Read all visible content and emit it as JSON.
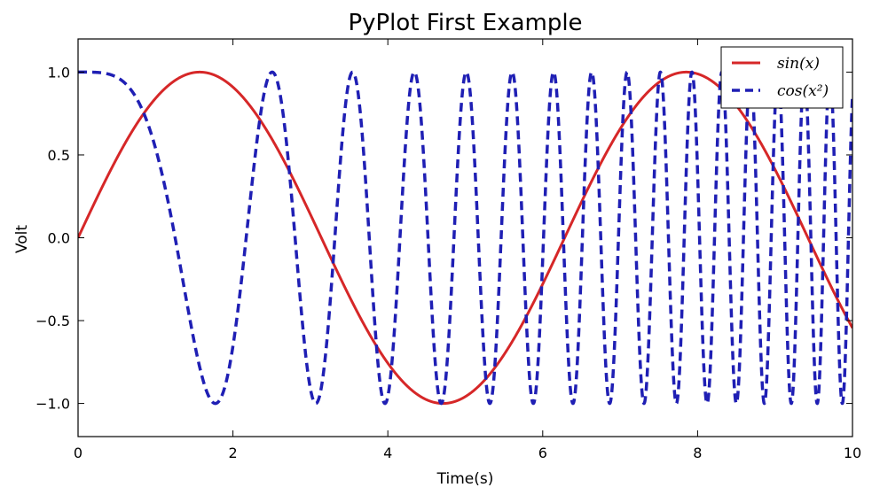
{
  "chart_data": {
    "type": "line",
    "title": "PyPlot First Example",
    "xlabel": "Time(s)",
    "ylabel": "Volt",
    "xlim": [
      0,
      10
    ],
    "ylim": [
      -1.2,
      1.2
    ],
    "xticks": [
      0,
      2,
      4,
      6,
      8,
      10
    ],
    "xtick_labels": [
      "0",
      "2",
      "4",
      "6",
      "8",
      "10"
    ],
    "yticks": [
      1.0,
      0.5,
      0.0,
      -0.5,
      -1.0
    ],
    "ytick_labels": [
      "1.0",
      "0.5",
      "0.0",
      "−0.5",
      "−1.0"
    ],
    "grid": false,
    "legend_position": "top-right",
    "series": [
      {
        "name": "sin(x)",
        "function": "sin(x)",
        "color": "#d62728",
        "linestyle": "solid",
        "x_range": [
          0,
          10
        ]
      },
      {
        "name": "cos(x²)",
        "function": "cos(x^2)",
        "color": "#1f1fb4",
        "linestyle": "dashed",
        "x_range": [
          0,
          10
        ]
      }
    ]
  }
}
